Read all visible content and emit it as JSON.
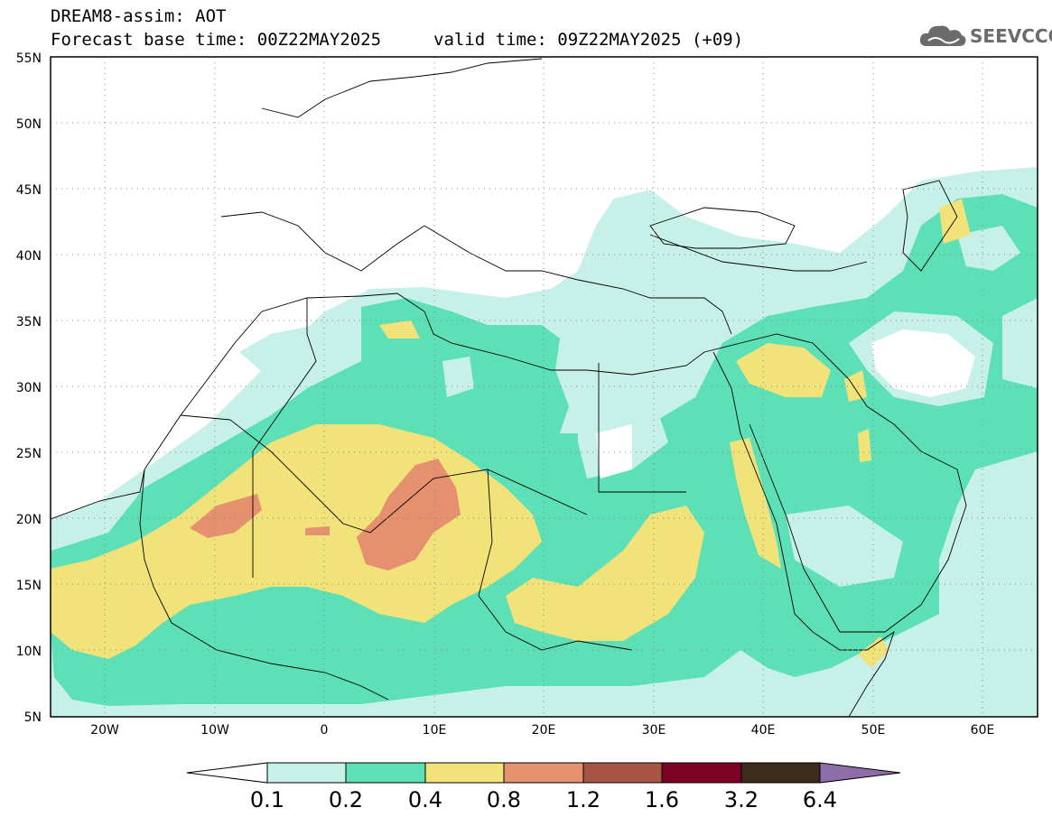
{
  "header": {
    "title_line1": "DREAM8-assim: AOT",
    "base_time": "Forecast base time: 00Z22MAY2025",
    "valid_time": "valid time: 09Z22MAY2025 (+09)"
  },
  "logo": {
    "text": "SEEVCCC",
    "icon": "cloud-icon"
  },
  "map": {
    "lon_range": [
      -25,
      65
    ],
    "lat_range": [
      5,
      55
    ],
    "lat_labels": [
      "55N",
      "50N",
      "45N",
      "40N",
      "35N",
      "30N",
      "25N",
      "20N",
      "15N",
      "10N",
      "5N"
    ],
    "lon_labels": [
      "20W",
      "10W",
      "0",
      "10E",
      "20E",
      "30E",
      "40E",
      "50E",
      "60E"
    ]
  },
  "colorbar": {
    "labels": [
      "0.1",
      "0.2",
      "0.4",
      "0.8",
      "1.2",
      "1.6",
      "3.2",
      "6.4"
    ],
    "colors": [
      "#ffffff",
      "#c6f0e8",
      "#5ee0b6",
      "#f2e27a",
      "#e5906e",
      "#a85444",
      "#7d0025",
      "#3d2b1b",
      "#8e6da8"
    ]
  },
  "legend_colors": {
    "aot_01_02": "#c6f0e8",
    "aot_02_04": "#5ee0b6",
    "aot_04_08": "#f2e27a",
    "aot_08_12": "#e5906e"
  }
}
